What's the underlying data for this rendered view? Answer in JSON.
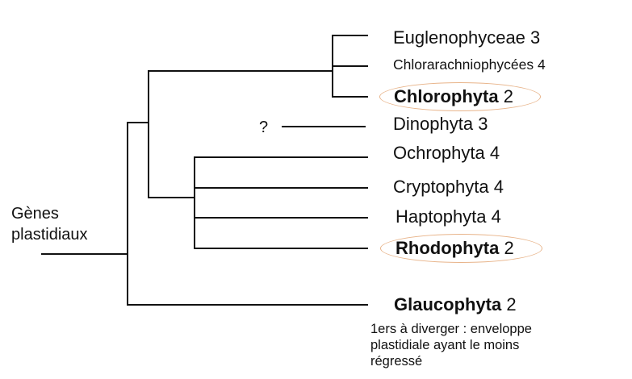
{
  "root_label_lines": [
    "Gènes",
    "plastidiaux"
  ],
  "unknown_mark": "?",
  "taxa": [
    {
      "id": "euglenophyceae",
      "name": "Euglenophyceae",
      "count": "3",
      "bold": false
    },
    {
      "id": "chlorarachniophycees",
      "name": "Chlorarachniophycées",
      "count": "4",
      "bold": false
    },
    {
      "id": "chlorophyta",
      "name": "Chlorophyta",
      "count": "2",
      "bold": true,
      "circled": true
    },
    {
      "id": "dinophyta",
      "name": "Dinophyta",
      "count": "3",
      "bold": false
    },
    {
      "id": "ochrophyta",
      "name": "Ochrophyta",
      "count": "4",
      "bold": false
    },
    {
      "id": "cryptophyta",
      "name": "Cryptophyta",
      "count": "4",
      "bold": false
    },
    {
      "id": "haptophyta",
      "name": "Haptophyta",
      "count": "4",
      "bold": false
    },
    {
      "id": "rhodophyta",
      "name": "Rhodophyta",
      "count": "2",
      "bold": true,
      "circled": true
    },
    {
      "id": "glaucophyta",
      "name": "Glaucophyta",
      "count": "2",
      "bold": true
    }
  ],
  "glaucophyta_note_lines": [
    "1ers à diverger : enveloppe",
    "plastidiale ayant le moins",
    "régressé"
  ],
  "colors": {
    "line": "#111111",
    "oval": "#e8b48a"
  }
}
